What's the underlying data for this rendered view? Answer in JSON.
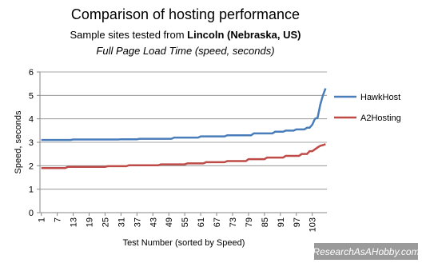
{
  "chart_data": {
    "type": "line",
    "title": "Comparison of hosting performance",
    "subtitle": "Sample sites tested from ",
    "subtitle_location": "Lincoln (Nebraska, US)",
    "chart_subtitle": "Full Page Load Time (speed, seconds)",
    "y_label": "Speed, seconds",
    "x_label": "Test Number (sorted by Speed)",
    "watermark": "ResearchAsAHobby.com",
    "x": [
      1,
      2,
      3,
      4,
      5,
      6,
      7,
      8,
      9,
      10,
      11,
      12,
      13,
      14,
      15,
      16,
      17,
      18,
      19,
      20,
      21,
      22,
      23,
      24,
      25,
      26,
      27,
      28,
      29,
      30,
      31,
      32,
      33,
      34,
      35,
      36,
      37,
      38,
      39,
      40,
      41,
      42,
      43,
      44,
      45,
      46,
      47,
      48,
      49,
      50,
      51,
      52,
      53,
      54,
      55,
      56,
      57,
      58,
      59,
      60,
      61,
      62,
      63,
      64,
      65,
      66,
      67,
      68,
      69,
      70,
      71,
      72,
      73,
      74,
      75,
      76,
      77,
      78,
      79,
      80,
      81,
      82,
      83,
      84,
      85,
      86,
      87,
      88,
      89,
      90,
      91,
      92,
      93,
      94,
      95,
      96,
      97,
      98,
      99,
      100,
      101,
      102,
      103,
      104,
      105,
      106,
      107,
      108
    ],
    "xlim": [
      0.5,
      108.5
    ],
    "xticks": [
      1,
      7,
      13,
      19,
      25,
      31,
      37,
      43,
      49,
      55,
      61,
      67,
      73,
      79,
      85,
      91,
      97,
      103
    ],
    "ylim": [
      0,
      6
    ],
    "yticks": [
      0,
      1,
      2,
      3,
      4,
      5,
      6
    ],
    "grid": true,
    "legend": "right",
    "series": [
      {
        "name": "HawkHost",
        "color": "#4a7ebb",
        "values": [
          3.1,
          3.1,
          3.1,
          3.1,
          3.1,
          3.1,
          3.1,
          3.1,
          3.1,
          3.1,
          3.1,
          3.1,
          3.12,
          3.12,
          3.12,
          3.12,
          3.12,
          3.12,
          3.12,
          3.12,
          3.12,
          3.12,
          3.12,
          3.12,
          3.12,
          3.12,
          3.12,
          3.12,
          3.12,
          3.12,
          3.13,
          3.13,
          3.13,
          3.13,
          3.13,
          3.13,
          3.13,
          3.15,
          3.15,
          3.15,
          3.15,
          3.15,
          3.15,
          3.15,
          3.15,
          3.15,
          3.15,
          3.15,
          3.15,
          3.15,
          3.2,
          3.2,
          3.2,
          3.2,
          3.2,
          3.2,
          3.2,
          3.2,
          3.2,
          3.2,
          3.25,
          3.25,
          3.25,
          3.25,
          3.25,
          3.25,
          3.25,
          3.25,
          3.25,
          3.25,
          3.3,
          3.3,
          3.3,
          3.3,
          3.3,
          3.3,
          3.3,
          3.3,
          3.3,
          3.3,
          3.38,
          3.38,
          3.38,
          3.38,
          3.38,
          3.38,
          3.38,
          3.38,
          3.45,
          3.45,
          3.45,
          3.45,
          3.5,
          3.5,
          3.5,
          3.5,
          3.55,
          3.55,
          3.55,
          3.55,
          3.62,
          3.62,
          3.75,
          4,
          4.05,
          4.6,
          5,
          5.3
        ]
      },
      {
        "name": "A2Hosting",
        "color": "#be4b48",
        "values": [
          1.9,
          1.9,
          1.9,
          1.9,
          1.9,
          1.9,
          1.9,
          1.9,
          1.9,
          1.9,
          1.95,
          1.95,
          1.95,
          1.95,
          1.95,
          1.95,
          1.95,
          1.95,
          1.95,
          1.95,
          1.95,
          1.95,
          1.95,
          1.95,
          1.95,
          1.98,
          1.98,
          1.98,
          1.98,
          1.98,
          1.98,
          1.98,
          1.98,
          2.02,
          2.02,
          2.02,
          2.02,
          2.02,
          2.02,
          2.02,
          2.02,
          2.02,
          2.02,
          2.02,
          2.02,
          2.06,
          2.06,
          2.06,
          2.06,
          2.06,
          2.06,
          2.06,
          2.06,
          2.06,
          2.06,
          2.1,
          2.1,
          2.1,
          2.1,
          2.1,
          2.1,
          2.1,
          2.15,
          2.15,
          2.15,
          2.15,
          2.15,
          2.15,
          2.15,
          2.15,
          2.2,
          2.2,
          2.2,
          2.2,
          2.2,
          2.2,
          2.2,
          2.2,
          2.28,
          2.28,
          2.28,
          2.28,
          2.28,
          2.28,
          2.28,
          2.35,
          2.35,
          2.35,
          2.35,
          2.35,
          2.35,
          2.35,
          2.42,
          2.42,
          2.42,
          2.42,
          2.42,
          2.42,
          2.5,
          2.5,
          2.5,
          2.62,
          2.62,
          2.7,
          2.78,
          2.85,
          2.88,
          2.92
        ]
      }
    ]
  }
}
